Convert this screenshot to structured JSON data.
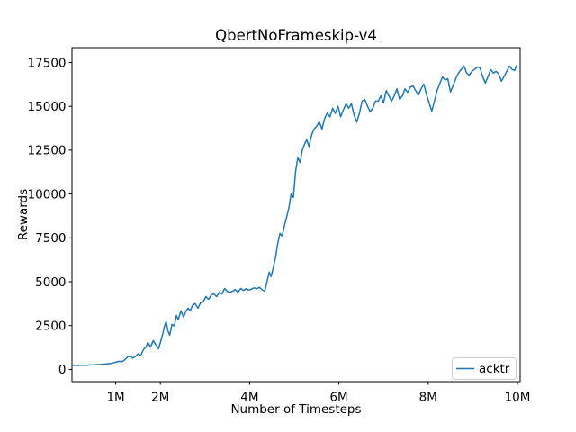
{
  "figure": {
    "title": "QbertNoFrameskip-v4"
  },
  "chart_data": {
    "type": "line",
    "title": "QbertNoFrameskip-v4",
    "xlabel": "Number of Timesteps",
    "ylabel": "Rewards",
    "grid": false,
    "background_color": "#ffffff",
    "axes_color": "#000000",
    "xlim": [
      0.02,
      10.06
    ],
    "ylim": [
      -700,
      18350
    ],
    "x_unit": "millions of timesteps",
    "xticks": [
      {
        "v": 1,
        "label": "1M"
      },
      {
        "v": 2,
        "label": "2M"
      },
      {
        "v": 4,
        "label": "4M"
      },
      {
        "v": 6,
        "label": "6M"
      },
      {
        "v": 8,
        "label": "8M"
      },
      {
        "v": 10,
        "label": "10M"
      }
    ],
    "yticks": [
      {
        "v": 0,
        "label": "0"
      },
      {
        "v": 2500,
        "label": "2500"
      },
      {
        "v": 5000,
        "label": "5000"
      },
      {
        "v": 7500,
        "label": "7500"
      },
      {
        "v": 10000,
        "label": "10000"
      },
      {
        "v": 12500,
        "label": "12500"
      },
      {
        "v": 15000,
        "label": "15000"
      },
      {
        "v": 17500,
        "label": "17500"
      }
    ],
    "legend": {
      "position": "lower right",
      "border_color": "#cccccc",
      "entries": [
        {
          "label": "acktr",
          "color": "#1f77b4"
        }
      ]
    },
    "series": [
      {
        "name": "acktr",
        "color": "#1f77b4",
        "points": [
          [
            0.02,
            225
          ],
          [
            0.1,
            235
          ],
          [
            0.18,
            230
          ],
          [
            0.26,
            245
          ],
          [
            0.34,
            240
          ],
          [
            0.42,
            255
          ],
          [
            0.5,
            260
          ],
          [
            0.58,
            270
          ],
          [
            0.66,
            280
          ],
          [
            0.74,
            300
          ],
          [
            0.82,
            320
          ],
          [
            0.9,
            340
          ],
          [
            0.96,
            380
          ],
          [
            1.02,
            430
          ],
          [
            1.08,
            460
          ],
          [
            1.14,
            440
          ],
          [
            1.2,
            540
          ],
          [
            1.26,
            700
          ],
          [
            1.32,
            770
          ],
          [
            1.38,
            640
          ],
          [
            1.44,
            740
          ],
          [
            1.5,
            880
          ],
          [
            1.56,
            800
          ],
          [
            1.62,
            1130
          ],
          [
            1.68,
            1280
          ],
          [
            1.72,
            1540
          ],
          [
            1.78,
            1280
          ],
          [
            1.84,
            1640
          ],
          [
            1.9,
            1400
          ],
          [
            1.96,
            1180
          ],
          [
            2.02,
            1700
          ],
          [
            2.06,
            2100
          ],
          [
            2.09,
            2460
          ],
          [
            2.13,
            2720
          ],
          [
            2.17,
            2200
          ],
          [
            2.21,
            1950
          ],
          [
            2.26,
            2570
          ],
          [
            2.31,
            2480
          ],
          [
            2.36,
            3080
          ],
          [
            2.4,
            2820
          ],
          [
            2.46,
            3340
          ],
          [
            2.52,
            2980
          ],
          [
            2.57,
            3300
          ],
          [
            2.62,
            3490
          ],
          [
            2.67,
            3340
          ],
          [
            2.72,
            3650
          ],
          [
            2.78,
            3750
          ],
          [
            2.84,
            3490
          ],
          [
            2.9,
            3800
          ],
          [
            2.96,
            3850
          ],
          [
            3.02,
            4150
          ],
          [
            3.08,
            4000
          ],
          [
            3.14,
            4250
          ],
          [
            3.2,
            4300
          ],
          [
            3.26,
            4150
          ],
          [
            3.32,
            4400
          ],
          [
            3.38,
            4300
          ],
          [
            3.44,
            4620
          ],
          [
            3.5,
            4450
          ],
          [
            3.56,
            4400
          ],
          [
            3.62,
            4460
          ],
          [
            3.68,
            4550
          ],
          [
            3.74,
            4400
          ],
          [
            3.8,
            4620
          ],
          [
            3.86,
            4500
          ],
          [
            3.92,
            4600
          ],
          [
            3.98,
            4520
          ],
          [
            4.04,
            4580
          ],
          [
            4.1,
            4650
          ],
          [
            4.16,
            4600
          ],
          [
            4.22,
            4680
          ],
          [
            4.28,
            4540
          ],
          [
            4.34,
            4460
          ],
          [
            4.4,
            5130
          ],
          [
            4.44,
            5550
          ],
          [
            4.48,
            5290
          ],
          [
            4.53,
            5800
          ],
          [
            4.58,
            6400
          ],
          [
            4.63,
            7190
          ],
          [
            4.68,
            7750
          ],
          [
            4.73,
            7600
          ],
          [
            4.78,
            8200
          ],
          [
            4.83,
            8700
          ],
          [
            4.88,
            9240
          ],
          [
            4.93,
            10000
          ],
          [
            4.98,
            9800
          ],
          [
            5.03,
            11300
          ],
          [
            5.08,
            12070
          ],
          [
            5.13,
            11800
          ],
          [
            5.18,
            12500
          ],
          [
            5.23,
            12840
          ],
          [
            5.28,
            13100
          ],
          [
            5.33,
            12700
          ],
          [
            5.38,
            13300
          ],
          [
            5.44,
            13700
          ],
          [
            5.5,
            13860
          ],
          [
            5.56,
            14120
          ],
          [
            5.62,
            13700
          ],
          [
            5.68,
            14300
          ],
          [
            5.74,
            14630
          ],
          [
            5.8,
            14400
          ],
          [
            5.86,
            14890
          ],
          [
            5.92,
            14600
          ],
          [
            5.98,
            15000
          ],
          [
            6.04,
            14400
          ],
          [
            6.1,
            14800
          ],
          [
            6.16,
            15150
          ],
          [
            6.22,
            14900
          ],
          [
            6.28,
            15150
          ],
          [
            6.34,
            14500
          ],
          [
            6.4,
            14100
          ],
          [
            6.46,
            14600
          ],
          [
            6.52,
            15300
          ],
          [
            6.58,
            15400
          ],
          [
            6.64,
            15000
          ],
          [
            6.7,
            14700
          ],
          [
            6.76,
            14900
          ],
          [
            6.82,
            15300
          ],
          [
            6.88,
            15300
          ],
          [
            6.94,
            15600
          ],
          [
            7.0,
            15200
          ],
          [
            7.06,
            15900
          ],
          [
            7.12,
            15600
          ],
          [
            7.18,
            15300
          ],
          [
            7.24,
            15600
          ],
          [
            7.3,
            16000
          ],
          [
            7.36,
            15400
          ],
          [
            7.42,
            15600
          ],
          [
            7.48,
            16000
          ],
          [
            7.54,
            15800
          ],
          [
            7.6,
            16100
          ],
          [
            7.66,
            16170
          ],
          [
            7.72,
            15900
          ],
          [
            7.78,
            15660
          ],
          [
            7.84,
            16000
          ],
          [
            7.9,
            16270
          ],
          [
            7.96,
            15700
          ],
          [
            8.02,
            15200
          ],
          [
            8.08,
            14730
          ],
          [
            8.14,
            15300
          ],
          [
            8.2,
            15900
          ],
          [
            8.26,
            16300
          ],
          [
            8.32,
            16680
          ],
          [
            8.38,
            16500
          ],
          [
            8.44,
            16580
          ],
          [
            8.5,
            15820
          ],
          [
            8.56,
            16200
          ],
          [
            8.62,
            16600
          ],
          [
            8.68,
            16900
          ],
          [
            8.74,
            17100
          ],
          [
            8.8,
            17300
          ],
          [
            8.86,
            16900
          ],
          [
            8.92,
            16780
          ],
          [
            8.98,
            17000
          ],
          [
            9.04,
            17100
          ],
          [
            9.1,
            17250
          ],
          [
            9.16,
            17200
          ],
          [
            9.22,
            16700
          ],
          [
            9.28,
            16330
          ],
          [
            9.34,
            16700
          ],
          [
            9.4,
            17100
          ],
          [
            9.46,
            16900
          ],
          [
            9.52,
            17000
          ],
          [
            9.58,
            16840
          ],
          [
            9.64,
            16430
          ],
          [
            9.7,
            16700
          ],
          [
            9.76,
            17000
          ],
          [
            9.82,
            17300
          ],
          [
            9.88,
            17100
          ],
          [
            9.94,
            17050
          ],
          [
            9.98,
            17350
          ]
        ]
      }
    ]
  }
}
